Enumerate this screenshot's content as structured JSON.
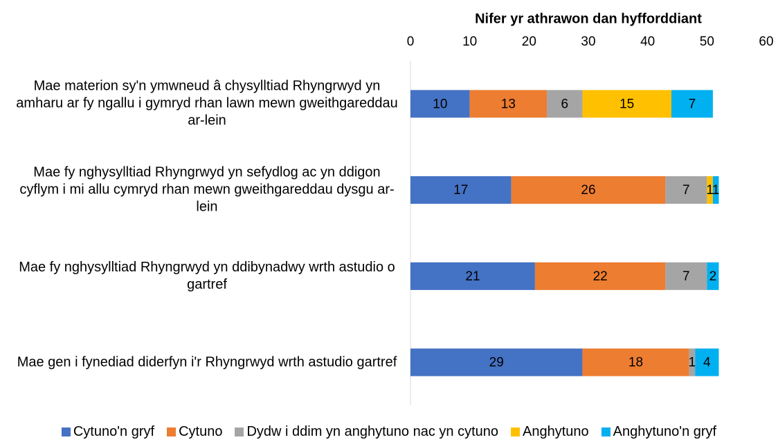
{
  "chart_data": {
    "type": "stacked-bar-horizontal",
    "xlabel": "Nifer yr athrawon dan hyfforddiant",
    "categories": [
      "Mae materion sy'n ymwneud â chysylltiad Rhyngrwyd yn amharu ar fy ngallu i gymryd rhan lawn mewn gweithgareddau ar-lein",
      "Mae fy nghysylltiad Rhyngrwyd yn sefydlog ac yn ddigon cyflym i mi allu cymryd rhan mewn gweithgareddau dysgu ar-lein",
      "Mae fy nghysylltiad Rhyngrwyd yn ddibynadwy wrth astudio o gartref",
      "Mae gen i fynediad diderfyn i'r Rhyngrwyd wrth astudio gartref"
    ],
    "series": [
      {
        "name": "Cytuno'n gryf",
        "color": "#4472c4",
        "values": [
          10,
          17,
          21,
          29
        ]
      },
      {
        "name": "Cytuno",
        "color": "#ed7d31",
        "values": [
          13,
          26,
          22,
          18
        ]
      },
      {
        "name": "Dydw i ddim yn anghytuno nac yn cytuno",
        "color": "#a5a5a5",
        "values": [
          6,
          7,
          7,
          1
        ]
      },
      {
        "name": "Anghytuno",
        "color": "#ffc000",
        "values": [
          15,
          1,
          null,
          null
        ]
      },
      {
        "name": "Anghytuno'n gryf",
        "color": "#00b0f0",
        "values": [
          7,
          1,
          2,
          4
        ]
      }
    ],
    "xlim": [
      0,
      60
    ],
    "xticks": [
      0,
      10,
      20,
      30,
      40,
      50,
      60
    ],
    "legend": "bottom"
  }
}
